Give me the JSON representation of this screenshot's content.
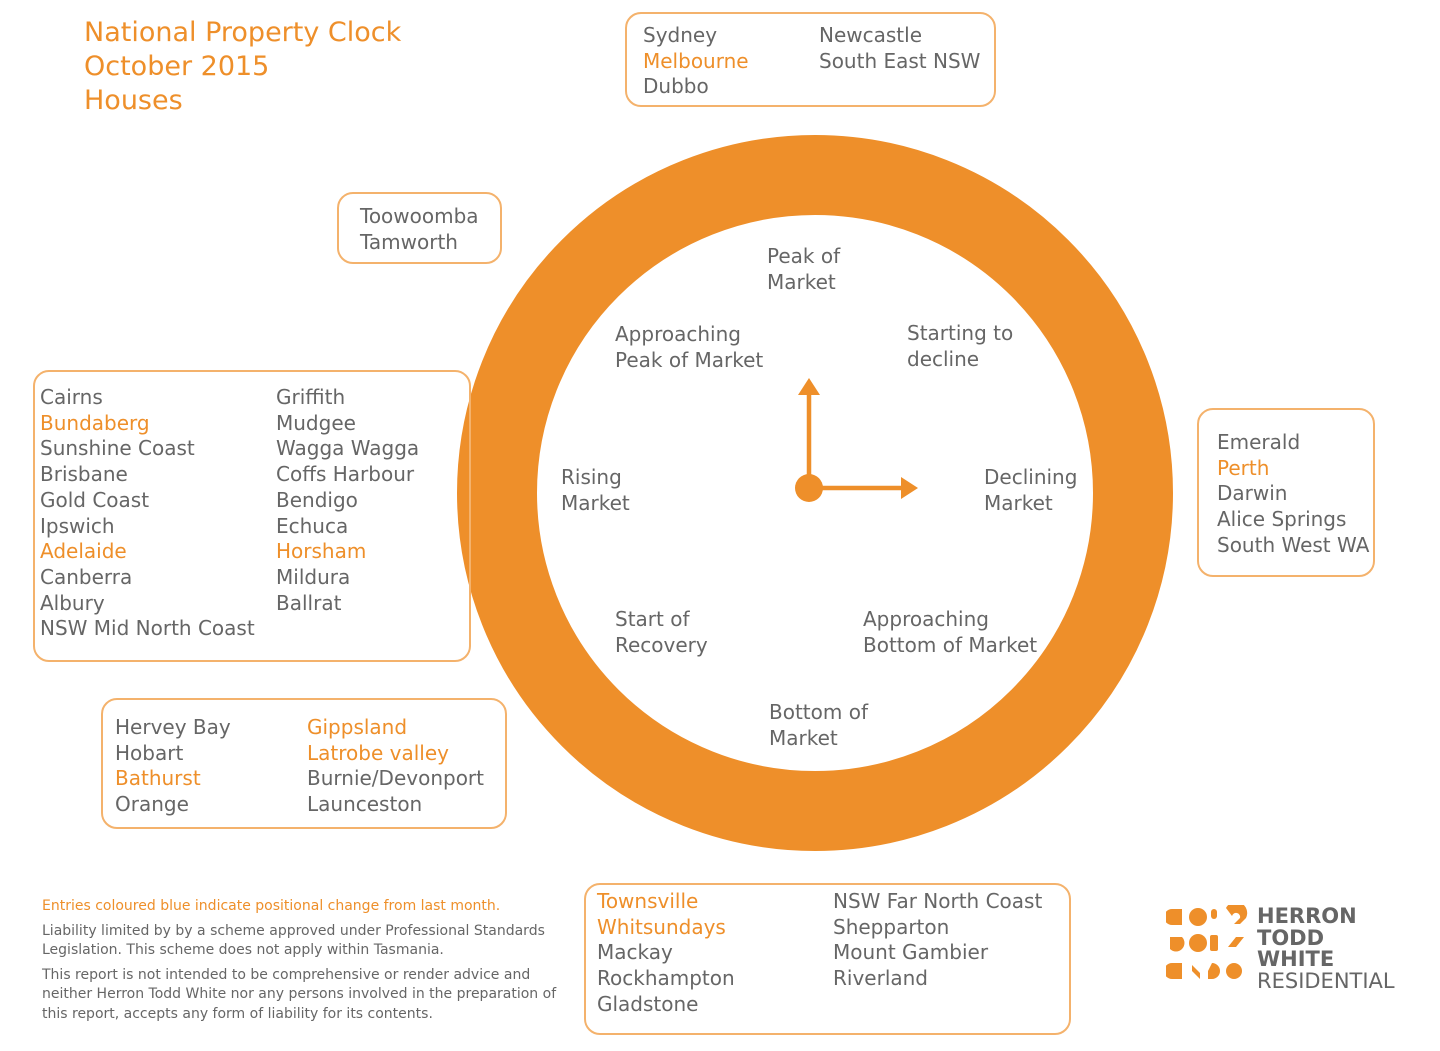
{
  "title": {
    "line1": "National Property Clock",
    "line2": "October 2015",
    "line3": "Houses"
  },
  "colors": {
    "accent": "#ee8f2a",
    "box_border": "#f4b26c",
    "text": "#666666"
  },
  "clock": {
    "phases": {
      "peak": [
        "Peak of",
        "Market"
      ],
      "starting_decline": [
        "Starting to",
        "decline"
      ],
      "declining": [
        "Declining",
        "Market"
      ],
      "approaching_bottom": [
        "Approaching",
        "Bottom of Market"
      ],
      "bottom": [
        "Bottom of",
        "Market"
      ],
      "start_recovery": [
        "Start of",
        "Recovery"
      ],
      "rising": [
        "Rising",
        "Market"
      ],
      "approaching_peak": [
        "Approaching",
        "Peak of Market"
      ]
    }
  },
  "boxes": {
    "peak": {
      "col1": [
        {
          "name": "Sydney",
          "changed": false
        },
        {
          "name": "Melbourne",
          "changed": true
        },
        {
          "name": "Dubbo",
          "changed": false
        }
      ],
      "col2": [
        {
          "name": "Newcastle",
          "changed": false
        },
        {
          "name": "South East NSW",
          "changed": false
        }
      ]
    },
    "approaching_peak": {
      "col1": [
        {
          "name": "Toowoomba",
          "changed": false
        },
        {
          "name": "Tamworth",
          "changed": false
        }
      ]
    },
    "rising": {
      "col1": [
        {
          "name": "Cairns",
          "changed": false
        },
        {
          "name": "Bundaberg",
          "changed": true
        },
        {
          "name": "Sunshine Coast",
          "changed": false
        },
        {
          "name": "Brisbane",
          "changed": false
        },
        {
          "name": "Gold Coast",
          "changed": false
        },
        {
          "name": "Ipswich",
          "changed": false
        },
        {
          "name": "Adelaide",
          "changed": true
        },
        {
          "name": "Canberra",
          "changed": false
        },
        {
          "name": "Albury",
          "changed": false
        },
        {
          "name": "NSW Mid North Coast",
          "changed": false
        }
      ],
      "col2": [
        {
          "name": "Griffith",
          "changed": false
        },
        {
          "name": "Mudgee",
          "changed": false
        },
        {
          "name": "Wagga Wagga",
          "changed": false
        },
        {
          "name": "Coffs Harbour",
          "changed": false
        },
        {
          "name": "Bendigo",
          "changed": false
        },
        {
          "name": "Echuca",
          "changed": false
        },
        {
          "name": "Horsham",
          "changed": true
        },
        {
          "name": "Mildura",
          "changed": false
        },
        {
          "name": "Ballrat",
          "changed": false
        }
      ]
    },
    "start_recovery": {
      "col1": [
        {
          "name": "Hervey Bay",
          "changed": false
        },
        {
          "name": "Hobart",
          "changed": false
        },
        {
          "name": "Bathurst",
          "changed": true
        },
        {
          "name": "Orange",
          "changed": false
        }
      ],
      "col2": [
        {
          "name": "Gippsland",
          "changed": true
        },
        {
          "name": "Latrobe valley",
          "changed": true
        },
        {
          "name": "Burnie/Devonport",
          "changed": false
        },
        {
          "name": "Launceston",
          "changed": false
        }
      ]
    },
    "declining": {
      "col1": [
        {
          "name": "Emerald",
          "changed": false
        },
        {
          "name": "Perth",
          "changed": true
        },
        {
          "name": "Darwin",
          "changed": false
        },
        {
          "name": "Alice Springs",
          "changed": false
        },
        {
          "name": "South West WA",
          "changed": false
        }
      ]
    },
    "bottom": {
      "col1": [
        {
          "name": "Townsville",
          "changed": true
        },
        {
          "name": "Whitsundays",
          "changed": true
        },
        {
          "name": "Mackay",
          "changed": false
        },
        {
          "name": "Rockhampton",
          "changed": false
        },
        {
          "name": "Gladstone",
          "changed": false
        }
      ],
      "col2": [
        {
          "name": "NSW Far North Coast",
          "changed": false
        },
        {
          "name": "Shepparton",
          "changed": false
        },
        {
          "name": "Mount Gambier",
          "changed": false
        },
        {
          "name": "Riverland",
          "changed": false
        }
      ]
    }
  },
  "notes": {
    "legend": "Entries coloured blue indicate positional change from last month.",
    "liability": "Liability limited by by a scheme approved under Professional Standards Legislation. This scheme does not apply within Tasmania.",
    "disclaimer": "This report is not intended to be comprehensive or render advice and neither Herron Todd White nor any persons involved in the preparation of this report, accepts any form of liability for its contents."
  },
  "logo": {
    "line1": "HERRON",
    "line2": "TODD",
    "line3": "WHITE",
    "line4": "RESIDENTIAL"
  }
}
